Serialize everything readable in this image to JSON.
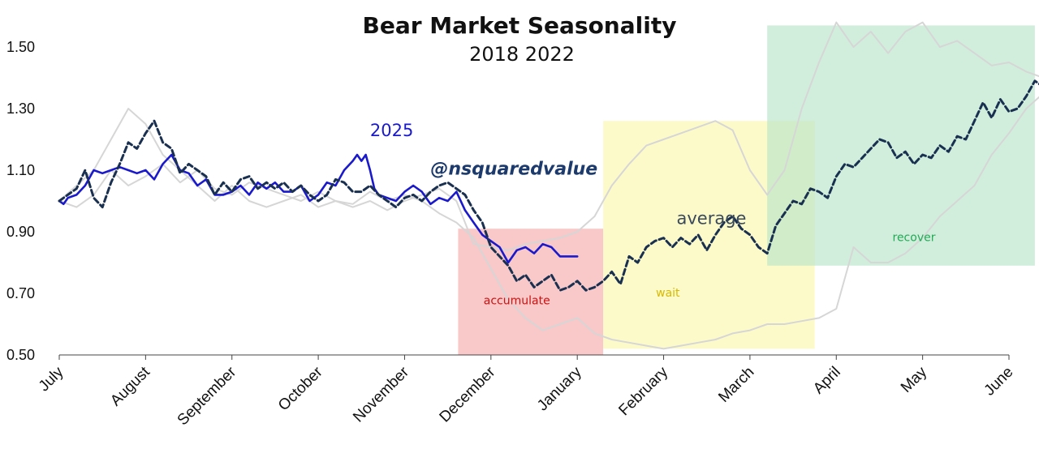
{
  "chart_data": {
    "type": "line",
    "title": "Bear Market Seasonality",
    "subtitle": "2018  2022",
    "handle": "@nsquaredvalue",
    "x_categories": [
      "July",
      "August",
      "September",
      "October",
      "November",
      "December",
      "January",
      "February",
      "March",
      "April",
      "May",
      "June"
    ],
    "ylim": [
      0.5,
      1.6
    ],
    "yticks": [
      "0.50",
      "0.70",
      "0.90",
      "1.10",
      "1.30",
      "1.50"
    ],
    "zones": [
      {
        "label": "accumulate",
        "x_range": [
          4.62,
          6.3
        ],
        "y_range": [
          0.5,
          0.91
        ],
        "fill": "#f5a3a3",
        "text_color": "#cc1111",
        "label_at": [
          5.3,
          0.665
        ]
      },
      {
        "label": "wait",
        "x_range": [
          6.3,
          8.75
        ],
        "y_range": [
          0.52,
          1.26
        ],
        "fill": "#fbf7a6",
        "text_color": "#d8b800",
        "label_at": [
          7.05,
          0.69
        ]
      },
      {
        "label": "recover",
        "x_range": [
          8.2,
          11.3
        ],
        "y_range": [
          0.79,
          1.57
        ],
        "fill": "#b3e3c6",
        "text_color": "#22aa55",
        "label_at": [
          9.9,
          0.87
        ]
      }
    ],
    "series": [
      {
        "name": "2025",
        "style": "solid",
        "color": "#1a1acc",
        "label_at": [
          3.6,
          1.21
        ],
        "x": [
          0,
          0.05,
          0.1,
          0.2,
          0.3,
          0.4,
          0.5,
          0.6,
          0.7,
          0.8,
          0.9,
          1.0,
          1.1,
          1.2,
          1.3,
          1.4,
          1.5,
          1.6,
          1.7,
          1.8,
          1.9,
          2.0,
          2.1,
          2.2,
          2.3,
          2.4,
          2.5,
          2.6,
          2.7,
          2.8,
          2.9,
          3.0,
          3.1,
          3.2,
          3.3,
          3.4,
          3.45,
          3.5,
          3.55,
          3.6,
          3.65,
          3.7,
          3.8,
          3.9,
          4.0,
          4.1,
          4.2,
          4.3,
          4.4,
          4.5,
          4.6,
          4.7,
          4.8,
          4.9,
          5.0,
          5.1,
          5.2,
          5.3,
          5.4,
          5.5,
          5.6,
          5.7,
          5.8,
          5.9,
          6.0
        ],
        "y": [
          1.0,
          0.99,
          1.01,
          1.02,
          1.05,
          1.1,
          1.09,
          1.1,
          1.11,
          1.1,
          1.09,
          1.1,
          1.07,
          1.12,
          1.15,
          1.1,
          1.09,
          1.05,
          1.07,
          1.02,
          1.02,
          1.03,
          1.05,
          1.02,
          1.06,
          1.04,
          1.06,
          1.03,
          1.03,
          1.05,
          1.0,
          1.02,
          1.06,
          1.05,
          1.1,
          1.13,
          1.15,
          1.13,
          1.15,
          1.1,
          1.04,
          1.02,
          1.01,
          1.0,
          1.03,
          1.05,
          1.03,
          0.99,
          1.01,
          1.0,
          1.03,
          0.97,
          0.93,
          0.89,
          0.87,
          0.85,
          0.8,
          0.84,
          0.85,
          0.83,
          0.86,
          0.85,
          0.82,
          0.82,
          0.82
        ]
      },
      {
        "name": "average",
        "style": "dashed",
        "color": "#1a3050",
        "label_at": [
          7.15,
          0.925
        ],
        "x": [
          0,
          0.1,
          0.2,
          0.3,
          0.4,
          0.5,
          0.6,
          0.7,
          0.8,
          0.9,
          1.0,
          1.1,
          1.2,
          1.3,
          1.4,
          1.5,
          1.6,
          1.7,
          1.8,
          1.9,
          2.0,
          2.1,
          2.2,
          2.3,
          2.4,
          2.5,
          2.6,
          2.7,
          2.8,
          2.9,
          3.0,
          3.1,
          3.2,
          3.3,
          3.4,
          3.5,
          3.6,
          3.7,
          3.8,
          3.9,
          4.0,
          4.1,
          4.2,
          4.3,
          4.4,
          4.5,
          4.6,
          4.7,
          4.8,
          4.9,
          5.0,
          5.1,
          5.2,
          5.3,
          5.4,
          5.5,
          5.6,
          5.7,
          5.8,
          5.9,
          6.0,
          6.1,
          6.2,
          6.3,
          6.4,
          6.5,
          6.6,
          6.7,
          6.8,
          6.9,
          7.0,
          7.1,
          7.2,
          7.3,
          7.4,
          7.5,
          7.6,
          7.7,
          7.8,
          7.9,
          8.0,
          8.1,
          8.2,
          8.3,
          8.4,
          8.5,
          8.6,
          8.7,
          8.8,
          8.9,
          9.0,
          9.1,
          9.2,
          9.3,
          9.4,
          9.5,
          9.6,
          9.7,
          9.8,
          9.9,
          10.0,
          10.1,
          10.2,
          10.3,
          10.4,
          10.5,
          10.6,
          10.7,
          10.8,
          10.9,
          11.0,
          11.1,
          11.2,
          11.3,
          11.4,
          11.5,
          11.6,
          11.7,
          11.8,
          11.9,
          12.0
        ],
        "y": [
          1.0,
          1.02,
          1.04,
          1.1,
          1.01,
          0.98,
          1.06,
          1.12,
          1.19,
          1.17,
          1.22,
          1.26,
          1.19,
          1.17,
          1.09,
          1.12,
          1.1,
          1.08,
          1.02,
          1.06,
          1.03,
          1.07,
          1.08,
          1.04,
          1.06,
          1.04,
          1.06,
          1.03,
          1.05,
          1.02,
          1.0,
          1.02,
          1.07,
          1.06,
          1.03,
          1.03,
          1.05,
          1.02,
          1.0,
          0.98,
          1.01,
          1.02,
          1.0,
          1.03,
          1.05,
          1.06,
          1.04,
          1.02,
          0.97,
          0.93,
          0.85,
          0.82,
          0.79,
          0.74,
          0.76,
          0.72,
          0.74,
          0.76,
          0.71,
          0.72,
          0.74,
          0.71,
          0.72,
          0.74,
          0.77,
          0.73,
          0.82,
          0.8,
          0.85,
          0.87,
          0.88,
          0.85,
          0.88,
          0.86,
          0.89,
          0.84,
          0.89,
          0.93,
          0.95,
          0.91,
          0.89,
          0.85,
          0.83,
          0.92,
          0.96,
          1.0,
          0.99,
          1.04,
          1.03,
          1.01,
          1.08,
          1.12,
          1.11,
          1.14,
          1.17,
          1.2,
          1.19,
          1.14,
          1.16,
          1.12,
          1.15,
          1.14,
          1.18,
          1.16,
          1.21,
          1.2,
          1.26,
          1.32,
          1.27,
          1.33,
          1.29,
          1.3,
          1.34,
          1.39,
          1.37,
          1.38,
          1.39,
          1.4,
          1.38,
          1.37,
          1.37
        ]
      },
      {
        "name": "",
        "style": "faint",
        "color": "#d6d6d6",
        "x": [
          0,
          0.2,
          0.4,
          0.6,
          0.8,
          1.0,
          1.2,
          1.4,
          1.6,
          1.8,
          2.0,
          2.2,
          2.4,
          2.6,
          2.8,
          3.0,
          3.2,
          3.4,
          3.6,
          3.8,
          4.0,
          4.2,
          4.4,
          4.6,
          4.8,
          5.0,
          5.2,
          5.4,
          5.6,
          5.8,
          6.0,
          6.2,
          6.4,
          6.6,
          6.8,
          7.0,
          7.2,
          7.4,
          7.6,
          7.8,
          8.0,
          8.2,
          8.4,
          8.6,
          8.8,
          9.0,
          9.2,
          9.4,
          9.6,
          9.8,
          10.0,
          10.2,
          10.4,
          10.6,
          10.8,
          11.0,
          11.2,
          11.4,
          11.6,
          11.8,
          12.0
        ],
        "y": [
          1.0,
          1.05,
          1.1,
          1.2,
          1.3,
          1.25,
          1.15,
          1.1,
          1.05,
          1.0,
          1.05,
          1.0,
          0.98,
          1.0,
          1.02,
          0.98,
          1.0,
          0.99,
          1.03,
          1.0,
          1.02,
          1.0,
          0.96,
          0.93,
          0.88,
          0.78,
          0.68,
          0.62,
          0.58,
          0.6,
          0.62,
          0.57,
          0.55,
          0.54,
          0.53,
          0.52,
          0.53,
          0.54,
          0.55,
          0.57,
          0.58,
          0.6,
          0.6,
          0.61,
          0.62,
          0.65,
          0.85,
          0.8,
          0.8,
          0.83,
          0.88,
          0.95,
          1.0,
          1.05,
          1.15,
          1.22,
          1.3,
          1.35,
          1.28,
          1.3,
          1.35
        ]
      },
      {
        "name": "",
        "style": "faint",
        "color": "#d6d6d6",
        "x": [
          0,
          0.2,
          0.4,
          0.6,
          0.8,
          1.0,
          1.2,
          1.4,
          1.6,
          1.8,
          2.0,
          2.2,
          2.4,
          2.6,
          2.8,
          3.0,
          3.2,
          3.4,
          3.6,
          3.8,
          4.0,
          4.2,
          4.4,
          4.6,
          4.8,
          5.0,
          5.2,
          5.4,
          5.6,
          5.8,
          6.0,
          6.2,
          6.4,
          6.6,
          6.8,
          7.0,
          7.2,
          7.4,
          7.6,
          7.8,
          8.0,
          8.2,
          8.4,
          8.6,
          8.8,
          9.0,
          9.2,
          9.4,
          9.6,
          9.8,
          10.0,
          10.2,
          10.4,
          10.6,
          10.8,
          11.0,
          11.2,
          11.4,
          11.6,
          11.8,
          12.0
        ],
        "y": [
          1.0,
          0.98,
          1.02,
          1.1,
          1.05,
          1.08,
          1.12,
          1.06,
          1.1,
          1.04,
          1.02,
          1.06,
          1.04,
          1.02,
          1.0,
          1.03,
          1.0,
          0.98,
          1.0,
          0.97,
          1.0,
          1.02,
          1.04,
          1.0,
          0.86,
          0.85,
          0.84,
          0.86,
          0.87,
          0.88,
          0.9,
          0.95,
          1.05,
          1.12,
          1.18,
          1.2,
          1.22,
          1.24,
          1.26,
          1.23,
          1.1,
          1.02,
          1.1,
          1.3,
          1.45,
          1.58,
          1.5,
          1.55,
          1.48,
          1.55,
          1.58,
          1.5,
          1.52,
          1.48,
          1.44,
          1.45,
          1.42,
          1.4,
          1.38,
          1.42,
          1.42
        ]
      }
    ]
  }
}
